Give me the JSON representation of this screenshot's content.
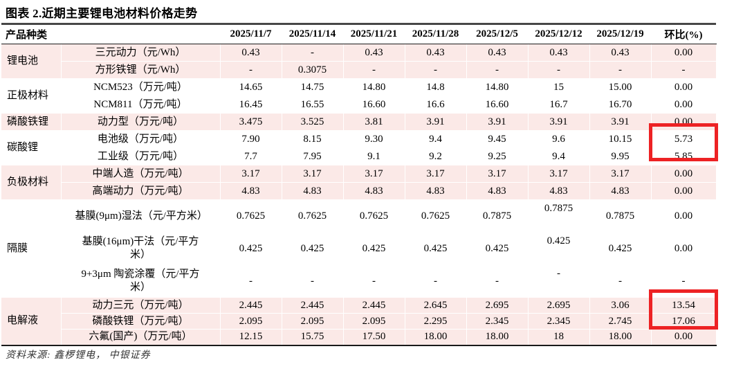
{
  "title": "图表 2.近期主要锂电池材料价格走势",
  "source": "资料来源: 鑫椤锂电， 中银证券",
  "colors": {
    "row_shade": "#fbe9e7",
    "highlight_box": "#ed2224",
    "text": "#000000"
  },
  "columns": [
    "产品种类",
    "2025/11/7",
    "2025/11/14",
    "2025/11/21",
    "2025/11/28",
    "2025/12/5",
    "2025/12/12",
    "2025/12/19",
    "环比(%)"
  ],
  "groups": [
    {
      "category": "锂电池",
      "shaded": true,
      "row_size": "std",
      "rows": [
        {
          "product": "三元动力（元/Wh）",
          "values": [
            "0.43",
            "-",
            "0.43",
            "0.43",
            "0.43",
            "0.43",
            "0.43",
            "0.00"
          ]
        },
        {
          "product": "方形铁锂（元/Wh）",
          "values": [
            "-",
            "0.3075",
            "-",
            "-",
            "-",
            "-",
            "-",
            "-"
          ]
        }
      ]
    },
    {
      "category": "正极材料",
      "shaded": false,
      "row_size": "std",
      "rows": [
        {
          "product": "NCM523（万元/吨）",
          "values": [
            "14.65",
            "14.75",
            "14.80",
            "14.8",
            "14.80",
            "15",
            "15.00",
            "0.00"
          ]
        },
        {
          "product": "NCM811（万元/吨）",
          "values": [
            "16.45",
            "16.55",
            "16.60",
            "16.6",
            "16.60",
            "16.7",
            "16.70",
            "0.00"
          ]
        }
      ]
    },
    {
      "category": "磷酸铁锂",
      "shaded": true,
      "row_size": "std",
      "rows": [
        {
          "product": "动力型（万元/吨）",
          "values": [
            "3.475",
            "3.525",
            "3.81",
            "3.91",
            "3.91",
            "3.91",
            "3.91",
            "0.00"
          ]
        }
      ]
    },
    {
      "category": "碳酸锂",
      "shaded": false,
      "row_size": "std",
      "rows": [
        {
          "product": "电池级（万元/吨）",
          "values": [
            "7.90",
            "8.15",
            "9.30",
            "9.4",
            "9.45",
            "9.6",
            "10.15",
            "5.73"
          ]
        },
        {
          "product": "工业级（万元/吨）",
          "values": [
            "7.7",
            "7.95",
            "9.1",
            "9.2",
            "9.25",
            "9.4",
            "9.95",
            "5.85"
          ]
        }
      ]
    },
    {
      "category": "负极材料",
      "shaded": true,
      "row_size": "std",
      "rows": [
        {
          "product": "中端人造（万元/吨）",
          "values": [
            "3.17",
            "3.17",
            "3.17",
            "3.17",
            "3.17",
            "3.17",
            "3.17",
            "0.00"
          ]
        },
        {
          "product": "高端动力（万元/吨）",
          "values": [
            "4.83",
            "4.83",
            "4.83",
            "4.83",
            "4.83",
            "4.83",
            "4.83",
            "0.00"
          ]
        }
      ]
    },
    {
      "category": "隔膜",
      "shaded": false,
      "row_size": "tall",
      "rows": [
        {
          "product": "基膜(9μm)湿法（元/平方米）",
          "raised_col": 5,
          "values": [
            "0.7625",
            "0.7625",
            "0.7625",
            "0.7625",
            "0.7875",
            "0.7875",
            "0.7875",
            "0.00"
          ]
        },
        {
          "product": "基膜(16μm)干法（元/平方米）",
          "raised_col": 5,
          "values": [
            "0.425",
            "0.425",
            "0.425",
            "0.425",
            "0.425",
            "0.425",
            "0.425",
            "0.00"
          ]
        },
        {
          "product": "9+3μm 陶瓷涂覆（元/平方米）",
          "raised_col": 5,
          "values": [
            "-",
            "-",
            "-",
            "-",
            "-",
            "-",
            "-",
            "-"
          ]
        }
      ]
    },
    {
      "category": "电解液",
      "shaded": true,
      "row_size": "short",
      "rows": [
        {
          "product": "动力三元（万元/吨）",
          "values": [
            "2.445",
            "2.445",
            "2.445",
            "2.645",
            "2.695",
            "2.695",
            "3.06",
            "13.54"
          ]
        },
        {
          "product": "磷酸铁锂（万元/吨）",
          "values": [
            "2.095",
            "2.095",
            "2.095",
            "2.295",
            "2.345",
            "2.345",
            "2.745",
            "17.06"
          ]
        },
        {
          "product": "六氟(国产)（万元/吨）",
          "values": [
            "12.15",
            "15.75",
            "17.50",
            "18.00",
            "18.00",
            "18",
            "18.00",
            "0.00"
          ]
        }
      ]
    }
  ],
  "highlights": [
    {
      "label": "碳酸锂 环比 高亮",
      "values": [
        "5.73",
        "5.85"
      ]
    },
    {
      "label": "电解液 环比 高亮",
      "values": [
        "13.54",
        "17.06"
      ]
    }
  ]
}
